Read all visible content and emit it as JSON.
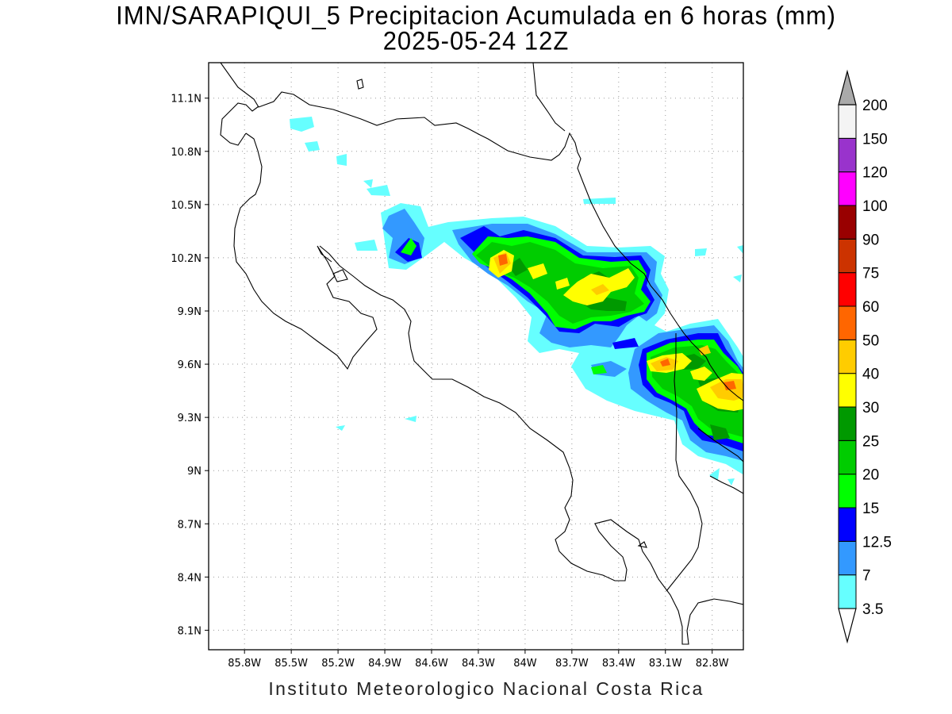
{
  "map": {
    "title_line1": "IMN/SARAPIQUI_5 Precipitacion Acumulada en 6 horas (mm)",
    "title_line2": "2025-05-24 12Z",
    "footer": "Instituto Meteorologico Nacional Costa Rica",
    "lat_ticks": [
      {
        "label": "11.1N",
        "value": 11.1
      },
      {
        "label": "10.8N",
        "value": 10.8
      },
      {
        "label": "10.5N",
        "value": 10.5
      },
      {
        "label": "10.2N",
        "value": 10.2
      },
      {
        "label": "9.9N",
        "value": 9.9
      },
      {
        "label": "9.6N",
        "value": 9.6
      },
      {
        "label": "9.3N",
        "value": 9.3
      },
      {
        "label": "9N",
        "value": 9.0
      },
      {
        "label": "8.7N",
        "value": 8.7
      },
      {
        "label": "8.4N",
        "value": 8.4
      },
      {
        "label": "8.1N",
        "value": 8.1
      }
    ],
    "lon_ticks": [
      {
        "label": "85.8W",
        "value": -85.8
      },
      {
        "label": "85.5W",
        "value": -85.5
      },
      {
        "label": "85.2W",
        "value": -85.2
      },
      {
        "label": "84.9W",
        "value": -84.9
      },
      {
        "label": "84.6W",
        "value": -84.6
      },
      {
        "label": "84.3W",
        "value": -84.3
      },
      {
        "label": "84W",
        "value": -84.0
      },
      {
        "label": "83.7W",
        "value": -83.7
      },
      {
        "label": "83.4W",
        "value": -83.4
      },
      {
        "label": "83.1W",
        "value": -83.1
      },
      {
        "label": "82.8W",
        "value": -82.8
      }
    ],
    "lon_range": [
      -86.03,
      -82.6
    ],
    "lat_range": [
      7.99,
      11.3
    ],
    "grid": true
  },
  "colorbar": {
    "labels": [
      "3.5",
      "7",
      "12.5",
      "15",
      "20",
      "25",
      "30",
      "40",
      "50",
      "60",
      "75",
      "90",
      "100",
      "120",
      "150",
      "200"
    ],
    "colors": [
      "#66ffff",
      "#3399ff",
      "#0000ff",
      "#00ff00",
      "#00cc00",
      "#009900",
      "#ffff00",
      "#ffcc00",
      "#ff6600",
      "#ff0000",
      "#cc3300",
      "#990000",
      "#ff00ff",
      "#9933cc",
      "#f4f4f4",
      "#aaaaaa"
    ]
  }
}
